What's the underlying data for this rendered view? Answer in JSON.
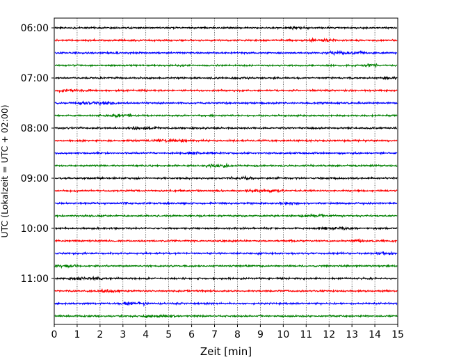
{
  "chart_data": {
    "type": "line",
    "title": "",
    "xlabel": "Zeit  [min]",
    "ylabel": "UTC (Lokalzeit = UTC + 02:00)",
    "xlim": [
      0,
      15
    ],
    "x_ticks": [
      "0",
      "1",
      "2",
      "3",
      "4",
      "5",
      "6",
      "7",
      "8",
      "9",
      "10",
      "11",
      "12",
      "13",
      "14",
      "15"
    ],
    "y_ticks": [
      "06:00",
      "07:00",
      "08:00",
      "09:00",
      "10:00",
      "11:00"
    ],
    "grid": {
      "x": true,
      "style": "dotted"
    },
    "trace_colors": [
      "#000000",
      "#ff0000",
      "#0000ff",
      "#008000"
    ],
    "series": [
      {
        "start": "06:00",
        "color": "#000000"
      },
      {
        "start": "06:15",
        "color": "#ff0000"
      },
      {
        "start": "06:30",
        "color": "#0000ff"
      },
      {
        "start": "06:45",
        "color": "#008000"
      },
      {
        "start": "07:00",
        "color": "#000000"
      },
      {
        "start": "07:15",
        "color": "#ff0000"
      },
      {
        "start": "07:30",
        "color": "#0000ff"
      },
      {
        "start": "07:45",
        "color": "#008000"
      },
      {
        "start": "08:00",
        "color": "#000000"
      },
      {
        "start": "08:15",
        "color": "#ff0000"
      },
      {
        "start": "08:30",
        "color": "#0000ff"
      },
      {
        "start": "08:45",
        "color": "#008000"
      },
      {
        "start": "09:00",
        "color": "#000000"
      },
      {
        "start": "09:15",
        "color": "#ff0000"
      },
      {
        "start": "09:30",
        "color": "#0000ff"
      },
      {
        "start": "09:45",
        "color": "#008000"
      },
      {
        "start": "10:00",
        "color": "#000000"
      },
      {
        "start": "10:15",
        "color": "#ff0000"
      },
      {
        "start": "10:30",
        "color": "#0000ff"
      },
      {
        "start": "10:45",
        "color": "#008000"
      },
      {
        "start": "11:00",
        "color": "#000000"
      },
      {
        "start": "11:15",
        "color": "#ff0000"
      },
      {
        "start": "11:30",
        "color": "#0000ff"
      },
      {
        "start": "11:45",
        "color": "#008000"
      }
    ]
  }
}
